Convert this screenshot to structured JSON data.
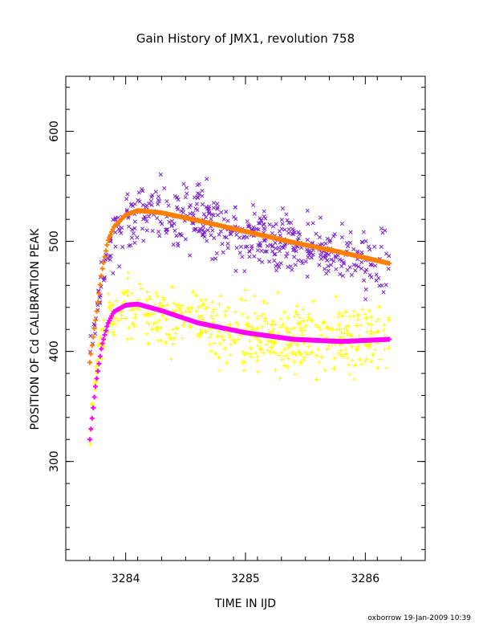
{
  "page": {
    "title": "Gain History of JMX1, revolution 758",
    "footer": "oxborrow 19-Jan-2009 10:39"
  },
  "chart_data": {
    "type": "scatter",
    "title": "Gain History of JMX1, revolution 758",
    "xlabel": "TIME IN IJD",
    "ylabel": "POSITION OF Cd CALIBRATION PEAK",
    "xlim": [
      3283.5,
      3286.5
    ],
    "ylim": [
      210,
      650
    ],
    "x_ticks": [
      3284,
      3285,
      3286
    ],
    "y_ticks": [
      300,
      400,
      500,
      600
    ],
    "x_minor_step": 0.2,
    "y_minor_step": 20,
    "grid": false,
    "series": [
      {
        "kind": "scatter",
        "marker": "x",
        "color": "#7a20d0",
        "trend": [
          [
            3283.7,
            390
          ],
          [
            3283.75,
            430
          ],
          [
            3283.8,
            470
          ],
          [
            3283.9,
            505
          ],
          [
            3284.0,
            522
          ],
          [
            3284.2,
            528
          ],
          [
            3284.5,
            522
          ],
          [
            3285.0,
            508
          ],
          [
            3285.5,
            495
          ],
          [
            3286.0,
            482
          ],
          [
            3286.2,
            480
          ]
        ],
        "scatter": 23,
        "n_points": 520
      },
      {
        "kind": "scatter",
        "marker": "+",
        "color": "#ffff00",
        "trend": [
          [
            3283.7,
            325
          ],
          [
            3283.75,
            380
          ],
          [
            3283.8,
            410
          ],
          [
            3283.9,
            432
          ],
          [
            3284.0,
            440
          ],
          [
            3284.2,
            436
          ],
          [
            3284.5,
            428
          ],
          [
            3285.0,
            417
          ],
          [
            3285.5,
            412
          ],
          [
            3286.0,
            412
          ],
          [
            3286.2,
            415
          ]
        ],
        "scatter": 25,
        "n_points": 560
      },
      {
        "kind": "fit",
        "color": "#ff7f00",
        "curve": [
          [
            3283.7,
            390
          ],
          [
            3283.75,
            430
          ],
          [
            3283.8,
            472
          ],
          [
            3283.85,
            500
          ],
          [
            3283.9,
            513
          ],
          [
            3284.0,
            524
          ],
          [
            3284.1,
            528
          ],
          [
            3284.3,
            526
          ],
          [
            3284.6,
            519
          ],
          [
            3285.0,
            509
          ],
          [
            3285.4,
            499
          ],
          [
            3285.8,
            490
          ],
          [
            3286.2,
            480
          ]
        ]
      },
      {
        "kind": "fit",
        "color": "#ff00ff",
        "curve": [
          [
            3283.7,
            320
          ],
          [
            3283.75,
            370
          ],
          [
            3283.8,
            405
          ],
          [
            3283.85,
            425
          ],
          [
            3283.9,
            436
          ],
          [
            3284.0,
            442
          ],
          [
            3284.1,
            443
          ],
          [
            3284.3,
            437
          ],
          [
            3284.6,
            426
          ],
          [
            3285.0,
            417
          ],
          [
            3285.4,
            411
          ],
          [
            3285.8,
            409
          ],
          [
            3286.2,
            411
          ]
        ]
      }
    ]
  }
}
